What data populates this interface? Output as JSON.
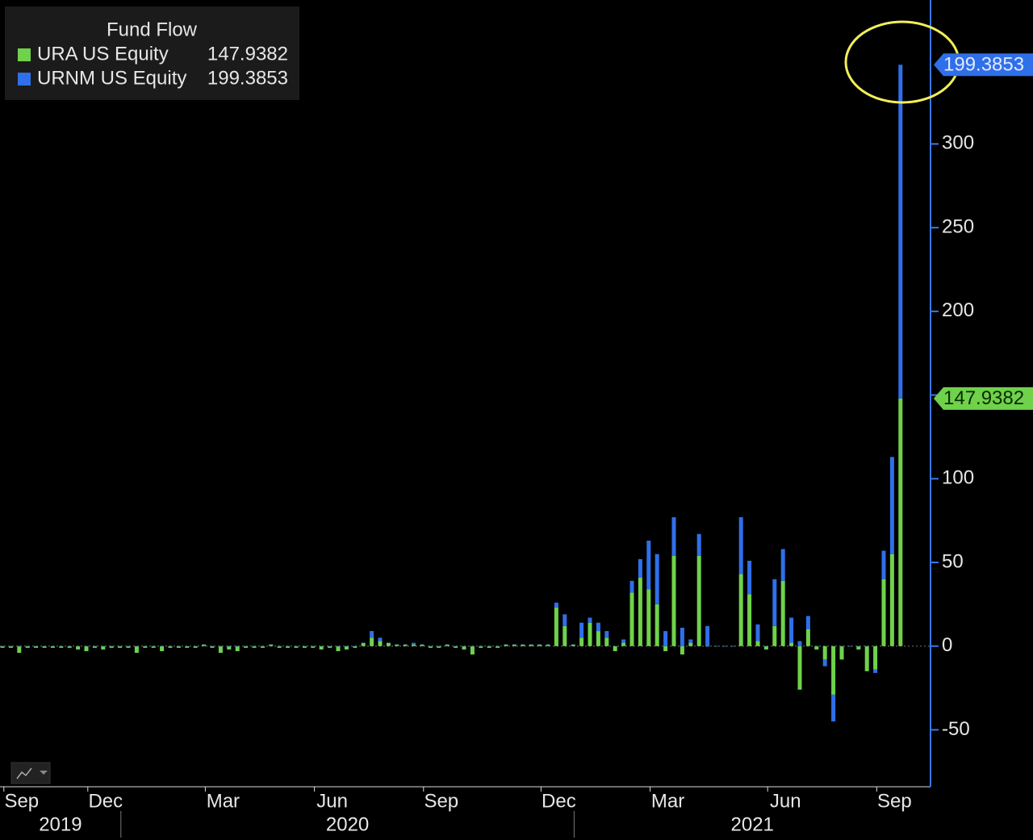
{
  "chart_data": {
    "type": "bar",
    "stacked": true,
    "legend_title": "Fund Flow",
    "categories": [
      null,
      null,
      "Sep",
      null,
      null,
      null,
      null,
      null,
      null,
      null,
      null,
      null,
      "Dec",
      null,
      null,
      null,
      null,
      null,
      null,
      null,
      null,
      null,
      null,
      null,
      null,
      null,
      "Mar",
      null,
      null,
      null,
      null,
      null,
      null,
      null,
      null,
      null,
      null,
      null,
      null,
      "Jun",
      null,
      null,
      null,
      null,
      null,
      null,
      null,
      null,
      null,
      null,
      null,
      null,
      "Sep",
      null,
      null,
      null,
      null,
      null,
      null,
      null,
      null,
      null,
      null,
      null,
      null,
      null,
      "Dec",
      null,
      null,
      null,
      null,
      null,
      null,
      null,
      null,
      null,
      null,
      null,
      null,
      "Mar",
      null,
      null,
      null,
      null,
      null,
      null,
      null,
      null,
      null,
      null,
      null,
      null,
      null,
      "Jun",
      null,
      null,
      null,
      null,
      null,
      null,
      null,
      null,
      null,
      null,
      null,
      null,
      "Sep",
      null
    ],
    "years": [
      "2019",
      "2020",
      "2021"
    ],
    "series": [
      {
        "name": "URA US Equity",
        "color": "#6fd24a",
        "values": [
          -1,
          -1,
          -4,
          -1,
          -1,
          -1,
          -1,
          -1,
          -1,
          -2,
          -3,
          -1,
          -2,
          -1,
          -1,
          -1,
          -4,
          -1,
          -1,
          -3,
          -1,
          -1,
          -1,
          -1,
          1,
          -1,
          -4,
          -2,
          -3,
          -1,
          -1,
          -1,
          1,
          -1,
          -1,
          -1,
          -1,
          -1,
          -2,
          -1,
          -3,
          -2,
          -1,
          2,
          5,
          3,
          2,
          1,
          1,
          1,
          1,
          -1,
          -1,
          1,
          -1,
          -2,
          -5,
          -1,
          -1,
          -1,
          1,
          1,
          1,
          1,
          1,
          1,
          23,
          12,
          1,
          5,
          14,
          9,
          5,
          -3,
          2,
          32,
          41,
          34,
          25,
          -3,
          54,
          -5,
          2,
          54,
          0,
          0,
          0,
          0,
          43,
          31,
          3,
          -2,
          12,
          39,
          2,
          -26,
          10,
          -2,
          -8,
          -29,
          -8,
          0,
          -2,
          -15,
          -14,
          40,
          55,
          147.9382
        ]
      },
      {
        "name": "URNM US Equity",
        "color": "#2f6fea",
        "values": [
          0,
          0,
          0,
          0,
          0,
          0,
          0,
          0,
          0,
          0,
          0,
          0,
          0,
          0,
          0,
          0,
          0,
          0,
          0,
          0,
          0,
          0,
          0,
          0,
          0,
          0,
          0,
          0,
          0,
          0,
          0,
          0,
          0,
          0,
          0,
          0,
          0,
          0,
          0,
          0,
          0,
          0,
          0,
          0,
          4,
          2,
          0,
          0,
          0,
          1,
          0,
          0,
          0,
          0,
          0,
          0,
          0,
          0,
          0,
          0,
          0,
          0,
          0,
          0,
          0,
          0,
          3,
          7,
          0,
          9,
          3,
          5,
          4,
          0,
          2,
          7,
          11,
          29,
          30,
          9,
          23,
          11,
          2,
          13,
          12,
          0,
          0,
          0,
          34,
          20,
          10,
          0,
          28,
          19,
          15,
          3,
          8,
          0,
          -4,
          -16,
          0,
          0,
          0,
          0,
          -2,
          17,
          58,
          199.3853
        ]
      }
    ],
    "ylim": [
      -84,
      386
    ],
    "yticks": [
      -50,
      0,
      50,
      100,
      150,
      200,
      250,
      300
    ],
    "ytick_labels_shown": [
      -50,
      0,
      50,
      100,
      200,
      250,
      300
    ]
  }
}
